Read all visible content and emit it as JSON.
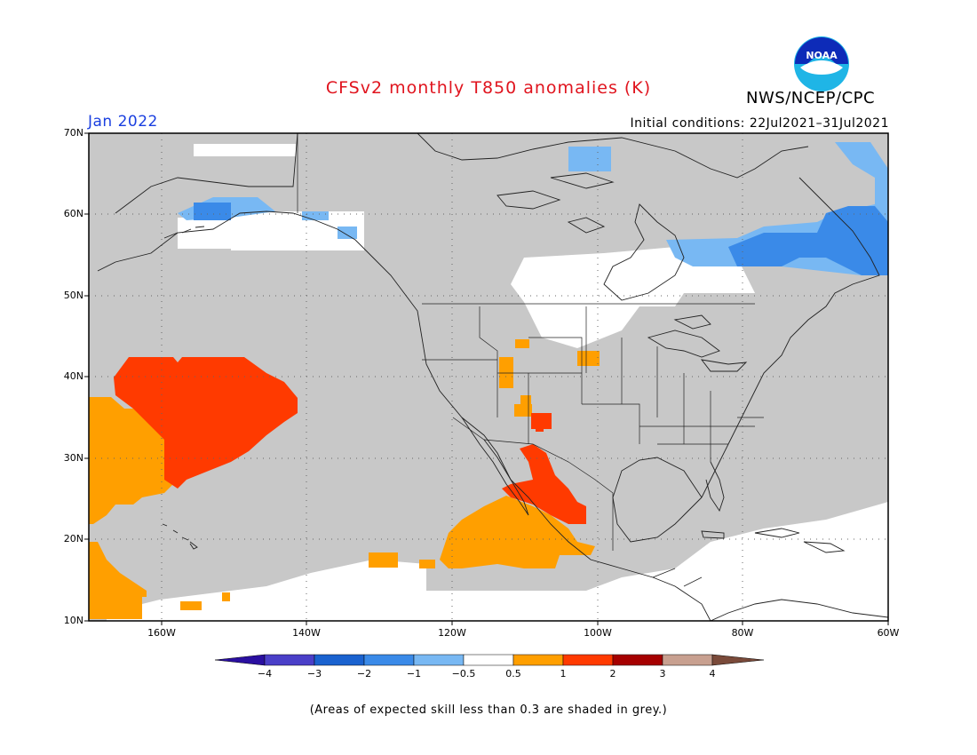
{
  "title": "CFSv2 monthly T850 anomalies (K)",
  "agency": "NWS/NCEP/CPC",
  "logo_text": "NOAA",
  "forecast_month": "Jan 2022",
  "initial_conditions": "Initial conditions: 22Jul2021–31Jul2021",
  "lat_labels": [
    "70N",
    "60N",
    "50N",
    "40N",
    "30N",
    "20N",
    "10N"
  ],
  "lon_labels": [
    "160W",
    "140W",
    "120W",
    "100W",
    "80W",
    "60W"
  ],
  "colorbar": {
    "labels": [
      "−4",
      "−3",
      "−2",
      "−1",
      "−0.5",
      "0.5",
      "1",
      "2",
      "3",
      "4"
    ],
    "colors": [
      "#2a0fa0",
      "#4a3fc8",
      "#1a62cf",
      "#3a8ae8",
      "#78b8f3",
      "#ffffff",
      "#ff9f00",
      "#ff3a00",
      "#a50000",
      "#c8a090",
      "#7a4a3a"
    ]
  },
  "footnote": "(Areas of expected skill less than 0.3 are shaded in grey.)",
  "map": {
    "extent": {
      "lon_min": -170,
      "lon_max": -60,
      "lat_min": 10,
      "lat_max": 70
    },
    "skill_mask_color": "#c8c8c8",
    "background": "#ffffff",
    "gridline_style": "dotted"
  }
}
